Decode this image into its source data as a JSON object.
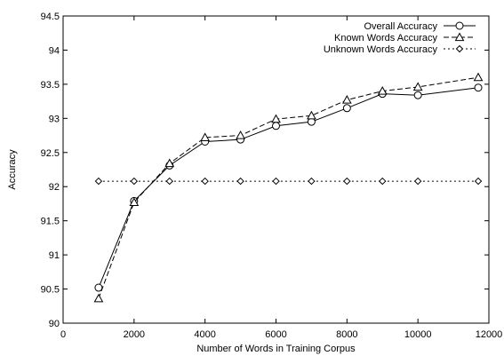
{
  "chart_data": {
    "type": "line",
    "title": "",
    "xlabel": "Number of Words in Training Corpus",
    "ylabel": "Accuracy",
    "xlim": [
      0,
      12000
    ],
    "ylim": [
      90,
      94.5
    ],
    "xticks": [
      0,
      2000,
      4000,
      6000,
      8000,
      10000,
      12000
    ],
    "xtick_labels": [
      "0",
      "2000",
      "4000",
      "6000",
      "8000",
      "10000",
      "12000"
    ],
    "yticks": [
      90,
      90.5,
      91,
      91.5,
      92,
      92.5,
      93,
      93.5,
      94,
      94.5
    ],
    "ytick_labels": [
      "90",
      "90.5",
      "91",
      "91.5",
      "92",
      "92.5",
      "93",
      "93.5",
      "94",
      "94.5"
    ],
    "grid": false,
    "legend_position": "top-right",
    "series": [
      {
        "name": "Overall Accuracy",
        "line_style": "solid",
        "marker": "circle",
        "color": "#000000",
        "x": [
          1000,
          2000,
          3000,
          4000,
          5000,
          6000,
          7000,
          8000,
          9000,
          10000,
          11700
        ],
        "y": [
          90.52,
          91.79,
          92.31,
          92.66,
          92.69,
          92.89,
          92.95,
          93.15,
          93.36,
          93.34,
          93.45
        ]
      },
      {
        "name": "Known Words Accuracy",
        "line_style": "dashed",
        "marker": "triangle",
        "color": "#000000",
        "x": [
          1000,
          2000,
          3000,
          4000,
          5000,
          6000,
          7000,
          8000,
          9000,
          10000,
          11700
        ],
        "y": [
          90.36,
          91.77,
          92.34,
          92.72,
          92.75,
          92.99,
          93.04,
          93.27,
          93.4,
          93.46,
          93.6
        ]
      },
      {
        "name": "Unknown Words Accuracy",
        "line_style": "dotted",
        "marker": "diamond",
        "color": "#000000",
        "x": [
          1000,
          2000,
          3000,
          4000,
          5000,
          6000,
          7000,
          8000,
          9000,
          10000,
          11700
        ],
        "y": [
          92.08,
          92.08,
          92.08,
          92.08,
          92.08,
          92.08,
          92.08,
          92.08,
          92.08,
          92.08,
          92.08
        ]
      }
    ]
  }
}
